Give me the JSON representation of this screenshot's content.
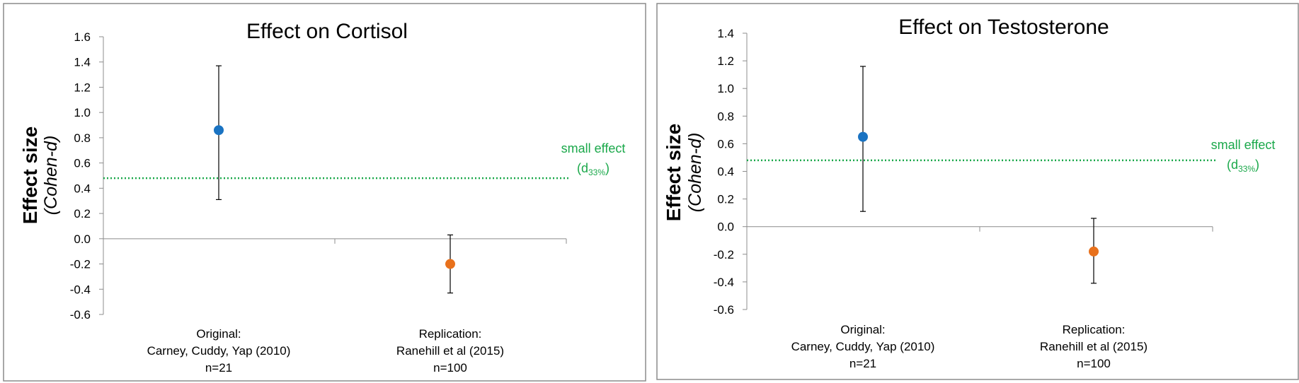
{
  "chart_data": [
    {
      "type": "scatter",
      "title": "Effect on Cortisol",
      "ylabel": "Effect size",
      "ylabel_sub": "(Cohen-d)",
      "ylim": [
        -0.6,
        1.6
      ],
      "yticks": [
        1.6,
        1.4,
        1.2,
        1.0,
        0.8,
        0.6,
        0.4,
        0.2,
        0.0,
        -0.2,
        -0.4,
        -0.6
      ],
      "ytick_labels": [
        "1.6",
        "1.4",
        "1.2",
        "1.0",
        "0.8",
        "0.6",
        "0.4",
        "0.2",
        "0.0",
        "-0.2",
        "-0.4",
        "-0.6"
      ],
      "categories": [
        [
          "Original:",
          "Carney, Cuddy, Yap (2010)",
          "n=21"
        ],
        [
          "Replication:",
          "Ranehill et al (2015)",
          "n=100"
        ]
      ],
      "points": [
        {
          "estimate": 0.86,
          "ci_low": 0.31,
          "ci_high": 1.37,
          "color": "#1a73c2"
        },
        {
          "estimate": -0.2,
          "ci_low": -0.43,
          "ci_high": 0.03,
          "color": "#e8711c"
        }
      ],
      "reference_line": {
        "value": 0.48,
        "label": "small effect",
        "sublabel_main": "(d",
        "sublabel_sub": "33%",
        "sublabel_end": ")",
        "color": "#1aa84a"
      },
      "grid": false
    },
    {
      "type": "scatter",
      "title": "Effect on Testosterone",
      "ylabel": "Effect size",
      "ylabel_sub": "(Cohen-d)",
      "ylim": [
        -0.6,
        1.4
      ],
      "yticks": [
        1.4,
        1.2,
        1.0,
        0.8,
        0.6,
        0.4,
        0.2,
        0.0,
        -0.2,
        -0.4,
        -0.6
      ],
      "ytick_labels": [
        "1.4",
        "1.2",
        "1.0",
        "0.8",
        "0.6",
        "0.4",
        "0.2",
        "0.0",
        "-0.2",
        "-0.4",
        "-0.6"
      ],
      "categories": [
        [
          "Original:",
          "Carney, Cuddy, Yap (2010)",
          "n=21"
        ],
        [
          "Replication:",
          "Ranehill et al (2015)",
          "n=100"
        ]
      ],
      "points": [
        {
          "estimate": 0.65,
          "ci_low": 0.11,
          "ci_high": 1.16,
          "color": "#1a73c2"
        },
        {
          "estimate": -0.18,
          "ci_low": -0.41,
          "ci_high": 0.06,
          "color": "#e8711c"
        }
      ],
      "reference_line": {
        "value": 0.48,
        "label": "small effect",
        "sublabel_main": "(d",
        "sublabel_sub": "33%",
        "sublabel_end": ")",
        "color": "#1aa84a"
      },
      "grid": false
    }
  ]
}
